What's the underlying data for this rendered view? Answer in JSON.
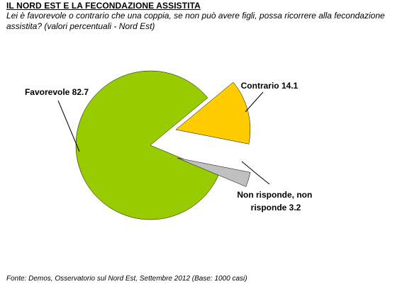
{
  "header": {
    "title": "IL NORD EST E LA FECONDAZIONE ASSISTITA",
    "subtitle": "Lei è favorevole o contrario che una coppia, se non può avere figli, possa ricorrere alla fecondazione assistita? (valori percentuali - Nord Est)"
  },
  "footer": {
    "source": "Fonte: Demos, Osservatorio sul Nord Est, Settembre 2012 (Base: 1000 casi)"
  },
  "chart_data": {
    "type": "pie",
    "title": "IL NORD EST E LA FECONDAZIONE ASSISTITA",
    "slices": [
      {
        "label": "Favorevole",
        "value": 82.7,
        "color": "#99cc00",
        "display": "Favorevole 82.7"
      },
      {
        "label": "Contrario",
        "value": 14.1,
        "color": "#ffcc00",
        "display": "Contrario 14.1"
      },
      {
        "label": "Non risponde, non risponde",
        "value": 3.2,
        "color": "#c0c0c0",
        "display_lines": [
          "Non risponde, non",
          "risponde 3.2"
        ]
      }
    ],
    "exploded": [
      "Contrario",
      "Non risponde, non risponde"
    ],
    "legend": "none"
  }
}
